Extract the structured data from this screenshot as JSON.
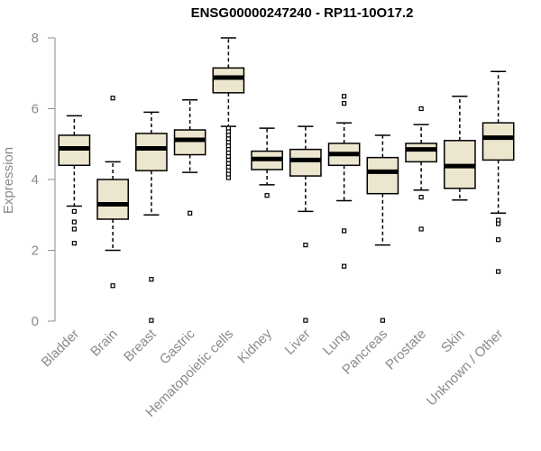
{
  "chart_data": {
    "type": "boxplot",
    "title": "ENSG00000247240 - RP11-10O17.2",
    "xlabel": "",
    "ylabel": "Expression",
    "ylim": [
      0,
      8
    ],
    "yticks": [
      0,
      2,
      4,
      6,
      8
    ],
    "grid": false,
    "box_fill": "#ede6cf",
    "box_stroke": "#000000",
    "axis_color": "#8a8a8a",
    "categories": [
      "Bladder",
      "Brain",
      "Breast",
      "Gastric",
      "Hematopoietic cells",
      "Kidney",
      "Liver",
      "Lung",
      "Pancreas",
      "Prostate",
      "Skin",
      "Unknown / Other"
    ],
    "boxes": [
      {
        "whisker_low": 3.25,
        "q1": 4.4,
        "median": 4.88,
        "q3": 5.25,
        "whisker_high": 5.8,
        "outliers": [
          3.1,
          2.8,
          2.6,
          2.2
        ]
      },
      {
        "whisker_low": 2.0,
        "q1": 2.88,
        "median": 3.3,
        "q3": 4.0,
        "whisker_high": 4.5,
        "outliers": [
          6.3,
          1.0
        ]
      },
      {
        "whisker_low": 3.0,
        "q1": 4.25,
        "median": 4.88,
        "q3": 5.3,
        "whisker_high": 5.9,
        "outliers": [
          1.18,
          0.02
        ]
      },
      {
        "whisker_low": 4.2,
        "q1": 4.7,
        "median": 5.12,
        "q3": 5.4,
        "whisker_high": 6.25,
        "outliers": [
          3.05
        ]
      },
      {
        "whisker_low": 5.5,
        "q1": 6.45,
        "median": 6.88,
        "q3": 7.15,
        "whisker_high": 8.0,
        "outliers": [
          5.45,
          5.35,
          5.25,
          5.15,
          5.05,
          4.95,
          4.85,
          4.75,
          4.65,
          4.55,
          4.45,
          4.35,
          4.25,
          4.15,
          4.05
        ]
      },
      {
        "whisker_low": 3.85,
        "q1": 4.28,
        "median": 4.58,
        "q3": 4.8,
        "whisker_high": 5.45,
        "outliers": [
          3.55
        ]
      },
      {
        "whisker_low": 3.1,
        "q1": 4.1,
        "median": 4.55,
        "q3": 4.85,
        "whisker_high": 5.5,
        "outliers": [
          2.15,
          0.02
        ]
      },
      {
        "whisker_low": 3.4,
        "q1": 4.4,
        "median": 4.72,
        "q3": 5.02,
        "whisker_high": 5.6,
        "outliers": [
          6.35,
          6.15,
          2.55,
          1.55
        ]
      },
      {
        "whisker_low": 2.15,
        "q1": 3.6,
        "median": 4.22,
        "q3": 4.62,
        "whisker_high": 5.25,
        "outliers": [
          0.02
        ]
      },
      {
        "whisker_low": 3.7,
        "q1": 4.5,
        "median": 4.85,
        "q3": 5.02,
        "whisker_high": 5.55,
        "outliers": [
          6.0,
          3.5,
          2.6
        ]
      },
      {
        "whisker_low": 3.42,
        "q1": 3.75,
        "median": 4.38,
        "q3": 5.1,
        "whisker_high": 6.35,
        "outliers": []
      },
      {
        "whisker_low": 3.05,
        "q1": 4.55,
        "median": 5.18,
        "q3": 5.6,
        "whisker_high": 7.05,
        "outliers": [
          2.85,
          2.75,
          2.3,
          1.4
        ]
      }
    ]
  }
}
